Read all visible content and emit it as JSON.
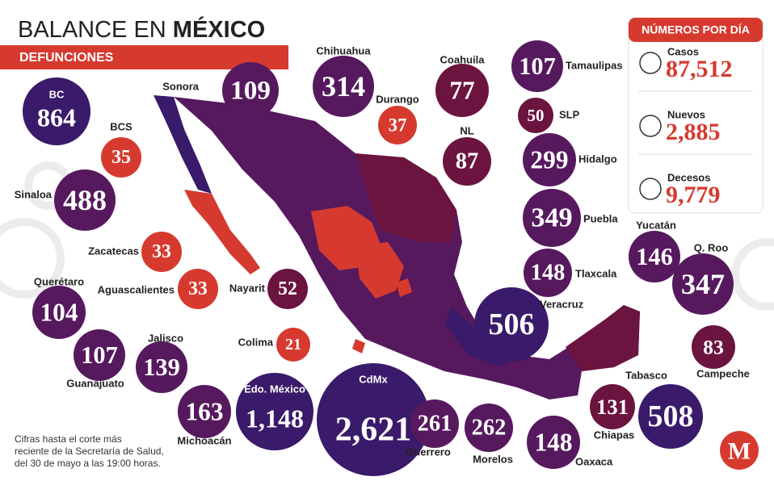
{
  "header": {
    "title_prefix": "BALANCE EN",
    "title_emphasis": "MÉXICO",
    "subtitle": "DEFUNCIONES"
  },
  "states": [
    {
      "name": "BC",
      "value": "864"
    },
    {
      "name": "Sonora",
      "value": "109"
    },
    {
      "name": "Chihuahua",
      "value": "314"
    },
    {
      "name": "Durango",
      "value": "37"
    },
    {
      "name": "Coahuila",
      "value": "77"
    },
    {
      "name": "Tamaulipas",
      "value": "107"
    },
    {
      "name": "SLP",
      "value": "50"
    },
    {
      "name": "NL",
      "value": "87"
    },
    {
      "name": "Hidalgo",
      "value": "299"
    },
    {
      "name": "Puebla",
      "value": "349"
    },
    {
      "name": "Tlaxcala",
      "value": "148"
    },
    {
      "name": "Veracruz",
      "value": "506"
    },
    {
      "name": "BCS",
      "value": "35"
    },
    {
      "name": "Sinaloa",
      "value": "488"
    },
    {
      "name": "Zacatecas",
      "value": "33"
    },
    {
      "name": "Aguascalientes",
      "value": "33"
    },
    {
      "name": "Nayarit",
      "value": "52"
    },
    {
      "name": "Querétaro",
      "value": "104"
    },
    {
      "name": "Guanajuato",
      "value": "107"
    },
    {
      "name": "Jalisco",
      "value": "139"
    },
    {
      "name": "Colima",
      "value": "21"
    },
    {
      "name": "Michoacán",
      "value": "163"
    },
    {
      "name": "Edo. México",
      "value": "1,148"
    },
    {
      "name": "CdMx",
      "value": "2,621"
    },
    {
      "name": "Guerrero",
      "value": "261"
    },
    {
      "name": "Morelos",
      "value": "262"
    },
    {
      "name": "Oaxaca",
      "value": "148"
    },
    {
      "name": "Chiapas",
      "value": "131"
    },
    {
      "name": "Tabasco",
      "value": "508"
    },
    {
      "name": "Campeche",
      "value": "83"
    },
    {
      "name": "Q. Roo",
      "value": "347"
    },
    {
      "name": "Yucatán",
      "value": "146"
    }
  ],
  "daily": {
    "title": "NÚMEROS POR DÍA",
    "items": [
      {
        "label": "Casos",
        "value": "87,512"
      },
      {
        "label": "Nuevos",
        "value": "2,885"
      },
      {
        "label": "Decesos",
        "value": "9,779"
      }
    ]
  },
  "footnote": [
    "Cifras hasta el corte más",
    "reciente de la Secretaría de Salud,",
    "del 30 de mayo a las 19:00 horas."
  ],
  "logo": "M"
}
